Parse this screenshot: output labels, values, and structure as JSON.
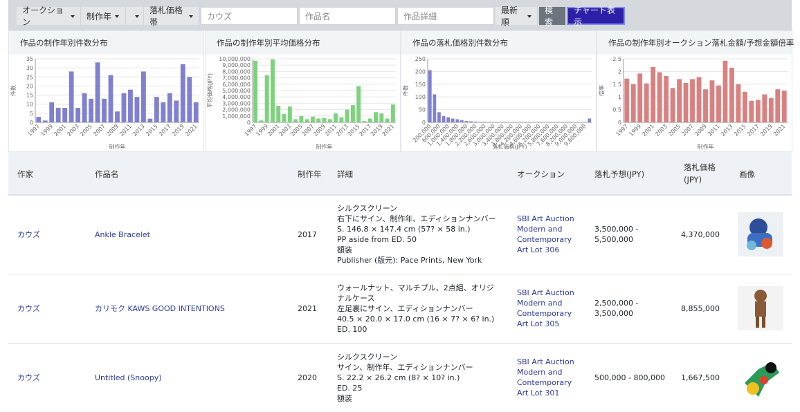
{
  "toolbar": {
    "filters": [
      "オークション",
      "制作年",
      "落札価格帯"
    ],
    "placeholders": [
      "カウズ",
      "作品名",
      "作品詳細"
    ],
    "sort": "最新順",
    "search": "検索",
    "chart_toggle": "チャート表示"
  },
  "chart_data": [
    {
      "type": "bar",
      "title": "作品の制作年別件数分布",
      "xlabel": "制作年",
      "ylabel": "件数",
      "color": "#8080d2",
      "categories": [
        "1997",
        null,
        "1999",
        null,
        "2001",
        null,
        "2003",
        null,
        "2005",
        null,
        "2007",
        null,
        "2009",
        null,
        "2011",
        null,
        "2013",
        null,
        "2015",
        null,
        "2017",
        null,
        "2019",
        null,
        "2021"
      ],
      "values": [
        3,
        1,
        11,
        8,
        8,
        28,
        8,
        16,
        13,
        33,
        13,
        26,
        6,
        16,
        18,
        14,
        28,
        2,
        14,
        11,
        16,
        12,
        32,
        25,
        11
      ],
      "ylim": [
        0,
        35
      ],
      "yticks": [
        0,
        5,
        10,
        15,
        20,
        25,
        30,
        35
      ],
      "grid": true
    },
    {
      "type": "bar",
      "title": "作品の制作年別平均価格分布",
      "xlabel": "制作年",
      "ylabel": "平均価格(JPY)",
      "color": "#7ed27e",
      "categories": [
        "1997",
        null,
        "1999",
        null,
        "2001",
        null,
        "2003",
        null,
        "2005",
        null,
        "2007",
        null,
        "2009",
        null,
        "2011",
        null,
        "2013",
        null,
        "2015",
        null,
        "2017",
        null,
        "2019",
        null,
        "2021"
      ],
      "values": [
        9700000,
        300000,
        7400000,
        9900000,
        2600000,
        1300000,
        2500000,
        500000,
        1000000,
        500000,
        900000,
        600000,
        700000,
        500000,
        1400000,
        800000,
        2000000,
        2700000,
        5700000,
        200000,
        600000,
        1600000,
        1400000,
        600000,
        2800000
      ],
      "ylim": [
        0,
        10000000
      ],
      "yticks": [
        0,
        {
          "value": 1000000,
          "label": "1,000,000"
        },
        {
          "value": 2000000,
          "label": "2,000,000"
        },
        {
          "value": 3000000,
          "label": "3,000,000"
        },
        {
          "value": 4000000,
          "label": "4,000,000"
        },
        {
          "value": 5000000,
          "label": "5,000,000"
        },
        {
          "value": 6000000,
          "label": "6,000,000"
        },
        {
          "value": 7000000,
          "label": "7,000,000"
        },
        {
          "value": 8000000,
          "label": "8,000,000"
        },
        {
          "value": 9000000,
          "label": "9,000,000"
        },
        {
          "value": 10000000,
          "label": "10,000,000"
        }
      ],
      "grid": true
    },
    {
      "type": "bar",
      "title": "作品の落札価格別件数分布",
      "xlabel": "落札価格(JPY)",
      "ylabel": "件数",
      "color": "#8080d2",
      "categories": [
        "200,000",
        null,
        "600,000",
        null,
        "1,000,000",
        null,
        "1,400,000",
        null,
        "1,800,000",
        null,
        "2,200,000",
        null,
        "2,600,000",
        null,
        "3,000,000",
        null,
        "3,400,000",
        null,
        "3,800,000",
        null,
        "4,200,000",
        null,
        "4,600,000",
        null,
        "5,200,000",
        null,
        "5,800,000",
        null,
        "7,600,000",
        null,
        "8,200,000",
        null,
        "9,000,000",
        null,
        "9,600,000",
        null
      ],
      "values": [
        205,
        110,
        40,
        25,
        20,
        15,
        12,
        8,
        5,
        4,
        3,
        2,
        2,
        1,
        1,
        1,
        1,
        1,
        1,
        1,
        1,
        1,
        1,
        1,
        1,
        1,
        1,
        1,
        1,
        1,
        1,
        1,
        1,
        1,
        1,
        15
      ],
      "ylim": [
        0,
        250
      ],
      "yticks": [
        0,
        50,
        100,
        150,
        200,
        250
      ],
      "grid": true
    },
    {
      "type": "bar",
      "title": "作品の制作年別オークション落札金額/予想金額倍率",
      "xlabel": "制作年",
      "ylabel": "倍率",
      "color": "#d98080",
      "categories": [
        "1997",
        null,
        "1999",
        null,
        "2001",
        null,
        "2003",
        null,
        "2005",
        null,
        "2007",
        null,
        "2009",
        null,
        "2011",
        null,
        "2013",
        null,
        "2015",
        null,
        "2017",
        null,
        "2019",
        null,
        "2021"
      ],
      "values": [
        1.72,
        1.5,
        1.92,
        1.53,
        2.18,
        1.97,
        1.82,
        1.35,
        1.7,
        1.55,
        1.7,
        1.78,
        1.3,
        1.65,
        1.45,
        2.42,
        2.15,
        1.5,
        1.2,
        0.85,
        0.88,
        1.1,
        0.95,
        1.3,
        1.25
      ],
      "ylim": [
        0,
        2.5
      ],
      "yticks": [
        0,
        0.5,
        1,
        1.5,
        2,
        2.5
      ],
      "grid": true
    }
  ],
  "table": {
    "headers": [
      "作家",
      "作品名",
      "制作年",
      "詳細",
      "オークション",
      "落札予想(JPY)",
      "落札価格(JPY)",
      "画像"
    ],
    "rows": [
      {
        "artist": "カウズ",
        "title": "Ankle Bracelet",
        "year": "2017",
        "details": [
          "シルクスクリーン",
          "右下にサイン、制作年、エディションナンバー",
          "S. 146.8 × 147.4 cm (57? × 58 in.)",
          "PP aside from ED. 50",
          "額装",
          "Publisher (版元): Pace Prints, New York"
        ],
        "auction": "SBI Art Auction Modern and Contemporary Art Lot 306",
        "estimate": "3,500,000 - 5,500,000",
        "price": "4,370,000"
      },
      {
        "artist": "カウズ",
        "title": "カリモク KAWS GOOD INTENTIONS",
        "year": "2021",
        "details": [
          "ウォールナット、マルチプル、2点組、オリジナルケース",
          "左足裏にサイン、エディションナンバー",
          "40.5 × 20.0 × 17.0 cm (16 × 7? × 6? in.)",
          "ED. 100"
        ],
        "auction": "SBI Art Auction Modern and Contemporary Art Lot 305",
        "estimate": "2,500,000 - 3,500,000",
        "price": "8,855,000"
      },
      {
        "artist": "カウズ",
        "title": "Untitled (Snoopy)",
        "year": "2020",
        "details": [
          "シルクスクリーン",
          "サイン、制作年、エディションナンバー",
          "S. 22.2 × 26.2 cm (8? × 10? in.)",
          "ED. 25",
          "額装"
        ],
        "auction": "SBI Art Auction Modern and Contemporary Art Lot 301",
        "estimate": "500,000 - 800,000",
        "price": "1,667,500"
      }
    ]
  }
}
